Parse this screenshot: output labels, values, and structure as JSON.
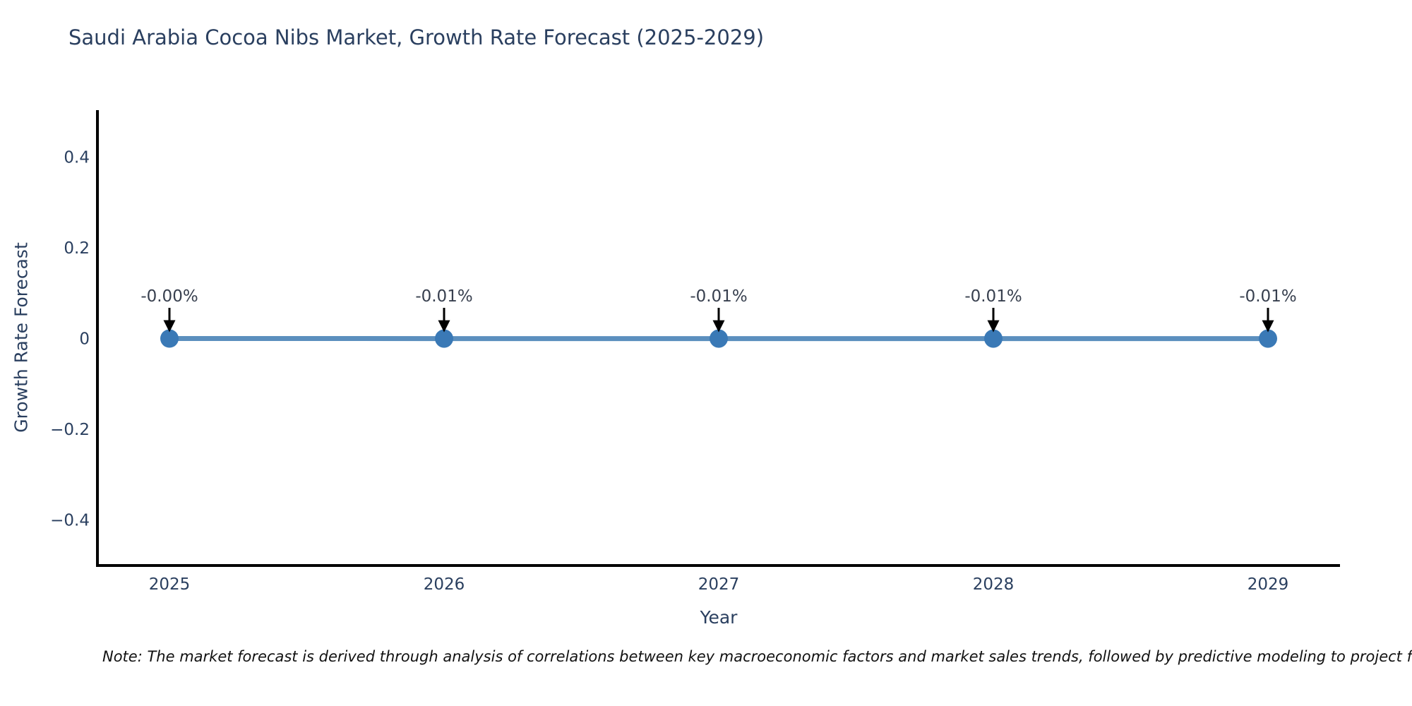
{
  "chart_data": {
    "type": "line",
    "title": "Saudi Arabia Cocoa Nibs Market, Growth Rate Forecast (2025-2029)",
    "xlabel": "Year",
    "ylabel": "Growth Rate Forecast",
    "categories": [
      "2025",
      "2026",
      "2027",
      "2028",
      "2029"
    ],
    "values": [
      -0.0,
      -0.01,
      -0.01,
      -0.01,
      -0.01
    ],
    "point_labels": [
      "-0.00%",
      "-0.01%",
      "-0.01%",
      "-0.01%",
      "-0.01%"
    ],
    "value_unit": "%",
    "ylim": [
      -0.5,
      0.5
    ],
    "ytick_labels": [
      "0.4",
      "0.2",
      "0",
      "−0.2",
      "−0.4"
    ],
    "ytick_values": [
      0.4,
      0.2,
      0,
      -0.2,
      -0.4
    ],
    "grid": false,
    "legend_position": "none",
    "annotation_arrows": true,
    "note": "Note: The market forecast is derived through analysis of correlations between key macroeconomic factors and market sales trends, followed by predictive modeling to project future sa",
    "colors": {
      "line": "#5b8fbe",
      "marker": "#3a79b6",
      "axis_line": "#000000",
      "title_text": "#2a3f5f",
      "tick_text": "#2a3f5f",
      "annotation_text": "#38404f",
      "arrow": "#000000",
      "note_text": "#111111",
      "background": "#ffffff"
    }
  }
}
